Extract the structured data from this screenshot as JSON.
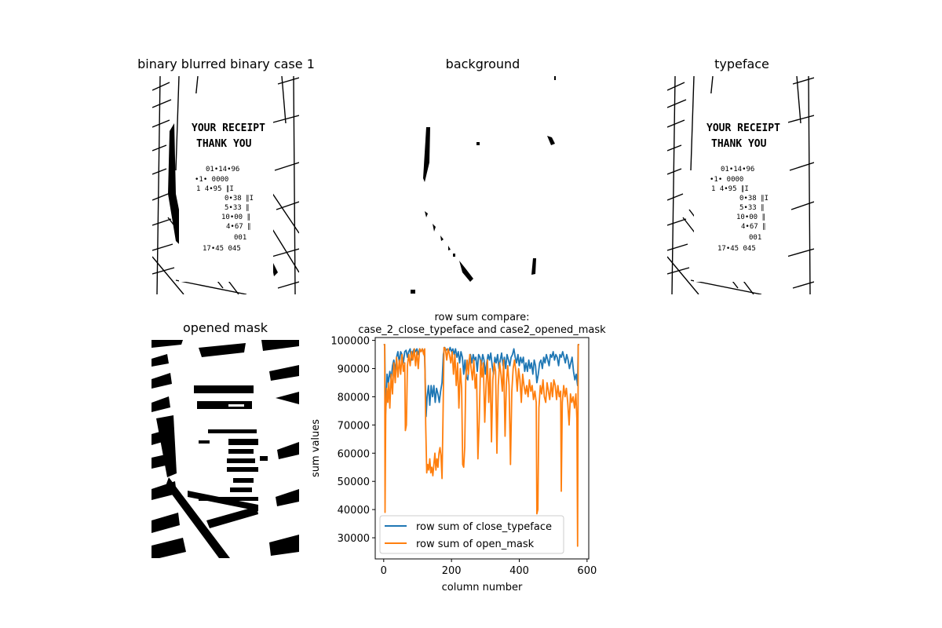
{
  "panels": {
    "p1_title": "binary blurred binary case 1",
    "p2_title": "background",
    "p3_title": "typeface",
    "p4_title": "opened mask"
  },
  "receipt": {
    "line1": "YOUR RECEIPT",
    "line2": "THANK YOU",
    "rows": [
      "01•14•96",
      "•1•     0000",
      "1          4•95  ∥I",
      "0•38  ∥I",
      "5•33  ∥",
      "10•00  ∥",
      "4•67  ∥",
      "001",
      "17•45  045"
    ]
  },
  "chart_data": {
    "type": "line",
    "title": "row sum compare:\ncase_2_close_typeface and case2_opened_mask",
    "title_line1": "row sum compare:",
    "title_line2": "case_2_close_typeface and case2_opened_mask",
    "xlabel": "column number",
    "ylabel": "sum values",
    "xlim": [
      -25,
      605
    ],
    "ylim": [
      22500,
      101000
    ],
    "xticks": [
      0,
      200,
      400,
      600
    ],
    "yticks": [
      30000,
      40000,
      50000,
      60000,
      70000,
      80000,
      90000,
      100000
    ],
    "legend_position": "lower-left",
    "series": [
      {
        "name": "row sum of close_typeface",
        "color": "#1f77b4",
        "points": [
          [
            0,
            98500
          ],
          [
            3,
            98500
          ],
          [
            5,
            73000
          ],
          [
            8,
            80000
          ],
          [
            10,
            88000
          ],
          [
            14,
            85000
          ],
          [
            18,
            89000
          ],
          [
            22,
            86000
          ],
          [
            26,
            91000
          ],
          [
            30,
            93000
          ],
          [
            34,
            89000
          ],
          [
            38,
            94000
          ],
          [
            42,
            96000
          ],
          [
            46,
            92000
          ],
          [
            50,
            96000
          ],
          [
            54,
            95000
          ],
          [
            58,
            92000
          ],
          [
            62,
            96000
          ],
          [
            66,
            96500
          ],
          [
            70,
            94000
          ],
          [
            74,
            96000
          ],
          [
            78,
            97000
          ],
          [
            82,
            93000
          ],
          [
            86,
            96000
          ],
          [
            90,
            97000
          ],
          [
            94,
            96000
          ],
          [
            98,
            97000
          ],
          [
            102,
            95000
          ],
          [
            106,
            97000
          ],
          [
            110,
            96000
          ],
          [
            114,
            97000
          ],
          [
            118,
            96000
          ],
          [
            121,
            94000
          ],
          [
            125,
            73000
          ],
          [
            128,
            80000
          ],
          [
            132,
            84000
          ],
          [
            136,
            77000
          ],
          [
            140,
            84000
          ],
          [
            144,
            80000
          ],
          [
            148,
            84000
          ],
          [
            152,
            78000
          ],
          [
            156,
            83000
          ],
          [
            160,
            81000
          ],
          [
            164,
            78000
          ],
          [
            168,
            82000
          ],
          [
            172,
            85000
          ],
          [
            176,
            95000
          ],
          [
            180,
            97500
          ],
          [
            184,
            96500
          ],
          [
            188,
            97000
          ],
          [
            192,
            96000
          ],
          [
            196,
            97500
          ],
          [
            200,
            96000
          ],
          [
            204,
            97000
          ],
          [
            208,
            95000
          ],
          [
            212,
            97000
          ],
          [
            216,
            94000
          ],
          [
            220,
            96000
          ],
          [
            224,
            92000
          ],
          [
            228,
            96000
          ],
          [
            232,
            94000
          ],
          [
            236,
            88000
          ],
          [
            240,
            93000
          ],
          [
            244,
            87000
          ],
          [
            248,
            86000
          ],
          [
            252,
            93000
          ],
          [
            256,
            95000
          ],
          [
            260,
            92000
          ],
          [
            264,
            95000
          ],
          [
            268,
            93000
          ],
          [
            272,
            94000
          ],
          [
            276,
            89000
          ],
          [
            280,
            95000
          ],
          [
            284,
            94000
          ],
          [
            288,
            91000
          ],
          [
            292,
            95000
          ],
          [
            296,
            93000
          ],
          [
            300,
            88000
          ],
          [
            304,
            92000
          ],
          [
            308,
            95000
          ],
          [
            312,
            93000
          ],
          [
            316,
            95500
          ],
          [
            320,
            91000
          ],
          [
            324,
            88000
          ],
          [
            328,
            94000
          ],
          [
            332,
            92000
          ],
          [
            336,
            95000
          ],
          [
            340,
            90000
          ],
          [
            344,
            93000
          ],
          [
            348,
            95500
          ],
          [
            352,
            91000
          ],
          [
            356,
            94000
          ],
          [
            360,
            90000
          ],
          [
            364,
            95000
          ],
          [
            368,
            93000
          ],
          [
            372,
            91000
          ],
          [
            376,
            94000
          ],
          [
            380,
            95000
          ],
          [
            384,
            97000
          ],
          [
            388,
            94000
          ],
          [
            392,
            92000
          ],
          [
            396,
            95000
          ],
          [
            400,
            91000
          ],
          [
            404,
            94000
          ],
          [
            408,
            92000
          ],
          [
            412,
            94000
          ],
          [
            416,
            89000
          ],
          [
            420,
            92000
          ],
          [
            424,
            89000
          ],
          [
            428,
            93000
          ],
          [
            432,
            90000
          ],
          [
            436,
            92000
          ],
          [
            440,
            88000
          ],
          [
            444,
            93000
          ],
          [
            448,
            91000
          ],
          [
            452,
            85000
          ],
          [
            456,
            88000
          ],
          [
            460,
            92000
          ],
          [
            464,
            93000
          ],
          [
            468,
            90000
          ],
          [
            472,
            94000
          ],
          [
            476,
            92000
          ],
          [
            480,
            95000
          ],
          [
            484,
            93000
          ],
          [
            488,
            91000
          ],
          [
            492,
            95000
          ],
          [
            496,
            94000
          ],
          [
            500,
            96000
          ],
          [
            504,
            93000
          ],
          [
            508,
            95000
          ],
          [
            512,
            94000
          ],
          [
            516,
            91000
          ],
          [
            520,
            95000
          ],
          [
            524,
            94000
          ],
          [
            528,
            96000
          ],
          [
            532,
            94000
          ],
          [
            536,
            92000
          ],
          [
            540,
            95000
          ],
          [
            544,
            93000
          ],
          [
            548,
            90000
          ],
          [
            552,
            92000
          ],
          [
            556,
            94000
          ],
          [
            560,
            89000
          ],
          [
            564,
            86000
          ],
          [
            568,
            88000
          ],
          [
            572,
            84000
          ],
          [
            574,
            98500
          ],
          [
            577,
            98500
          ]
        ]
      },
      {
        "name": "row sum of open_mask",
        "color": "#ff7f0e",
        "points": [
          [
            0,
            98500
          ],
          [
            3,
            98500
          ],
          [
            4,
            39000
          ],
          [
            6,
            75000
          ],
          [
            9,
            83000
          ],
          [
            12,
            78000
          ],
          [
            15,
            85000
          ],
          [
            18,
            76000
          ],
          [
            22,
            88000
          ],
          [
            26,
            81000
          ],
          [
            30,
            92000
          ],
          [
            34,
            85000
          ],
          [
            38,
            94000
          ],
          [
            42,
            87000
          ],
          [
            46,
            93000
          ],
          [
            50,
            88000
          ],
          [
            54,
            95000
          ],
          [
            58,
            89000
          ],
          [
            62,
            92000
          ],
          [
            64,
            68000
          ],
          [
            67,
            70000
          ],
          [
            70,
            91000
          ],
          [
            74,
            95000
          ],
          [
            78,
            91000
          ],
          [
            82,
            96000
          ],
          [
            86,
            93000
          ],
          [
            90,
            97000
          ],
          [
            94,
            91000
          ],
          [
            98,
            96000
          ],
          [
            102,
            90000
          ],
          [
            106,
            97000
          ],
          [
            110,
            96000
          ],
          [
            114,
            97000
          ],
          [
            118,
            95000
          ],
          [
            121,
            97000
          ],
          [
            124,
            70000
          ],
          [
            127,
            53000
          ],
          [
            130,
            56000
          ],
          [
            133,
            54000
          ],
          [
            136,
            58000
          ],
          [
            139,
            53000
          ],
          [
            142,
            55000
          ],
          [
            145,
            52000
          ],
          [
            148,
            56000
          ],
          [
            151,
            60000
          ],
          [
            154,
            54000
          ],
          [
            157,
            58000
          ],
          [
            160,
            55000
          ],
          [
            163,
            60000
          ],
          [
            166,
            62000
          ],
          [
            169,
            59000
          ],
          [
            172,
            51000
          ],
          [
            175,
            72000
          ],
          [
            178,
            97500
          ],
          [
            182,
            97000
          ],
          [
            186,
            93000
          ],
          [
            190,
            97000
          ],
          [
            194,
            95000
          ],
          [
            198,
            92000
          ],
          [
            202,
            96000
          ],
          [
            206,
            88000
          ],
          [
            210,
            95000
          ],
          [
            214,
            84000
          ],
          [
            218,
            92000
          ],
          [
            222,
            76000
          ],
          [
            226,
            90000
          ],
          [
            230,
            83000
          ],
          [
            233,
            56000
          ],
          [
            236,
            55000
          ],
          [
            239,
            62000
          ],
          [
            242,
            86000
          ],
          [
            246,
            93000
          ],
          [
            250,
            88000
          ],
          [
            254,
            95000
          ],
          [
            258,
            90000
          ],
          [
            262,
            86000
          ],
          [
            266,
            93000
          ],
          [
            270,
            83000
          ],
          [
            274,
            88000
          ],
          [
            278,
            58000
          ],
          [
            282,
            72000
          ],
          [
            286,
            93000
          ],
          [
            290,
            87000
          ],
          [
            294,
            92000
          ],
          [
            298,
            71000
          ],
          [
            302,
            84000
          ],
          [
            306,
            93000
          ],
          [
            310,
            78000
          ],
          [
            314,
            90000
          ],
          [
            318,
            64000
          ],
          [
            322,
            86000
          ],
          [
            326,
            92000
          ],
          [
            330,
            89000
          ],
          [
            334,
            60000
          ],
          [
            338,
            84000
          ],
          [
            342,
            92000
          ],
          [
            346,
            88000
          ],
          [
            350,
            82000
          ],
          [
            354,
            93000
          ],
          [
            358,
            66000
          ],
          [
            362,
            85000
          ],
          [
            366,
            91000
          ],
          [
            370,
            84000
          ],
          [
            374,
            56000
          ],
          [
            378,
            82000
          ],
          [
            382,
            90000
          ],
          [
            386,
            93000
          ],
          [
            390,
            89000
          ],
          [
            394,
            82000
          ],
          [
            398,
            90000
          ],
          [
            402,
            86000
          ],
          [
            406,
            78000
          ],
          [
            410,
            88000
          ],
          [
            414,
            84000
          ],
          [
            418,
            81000
          ],
          [
            422,
            84000
          ],
          [
            426,
            80000
          ],
          [
            430,
            86000
          ],
          [
            434,
            82000
          ],
          [
            438,
            84000
          ],
          [
            442,
            79000
          ],
          [
            446,
            82000
          ],
          [
            450,
            78000
          ],
          [
            452,
            38500
          ],
          [
            455,
            40000
          ],
          [
            458,
            76000
          ],
          [
            462,
            84000
          ],
          [
            466,
            81000
          ],
          [
            470,
            86000
          ],
          [
            474,
            80000
          ],
          [
            478,
            78000
          ],
          [
            482,
            85000
          ],
          [
            486,
            82000
          ],
          [
            490,
            79000
          ],
          [
            494,
            85000
          ],
          [
            498,
            80000
          ],
          [
            502,
            86000
          ],
          [
            506,
            84000
          ],
          [
            510,
            79000
          ],
          [
            514,
            84000
          ],
          [
            518,
            80000
          ],
          [
            522,
            82000
          ],
          [
            524,
            46500
          ],
          [
            527,
            78000
          ],
          [
            531,
            84000
          ],
          [
            535,
            80000
          ],
          [
            539,
            83000
          ],
          [
            543,
            78000
          ],
          [
            547,
            70000
          ],
          [
            551,
            81000
          ],
          [
            555,
            78000
          ],
          [
            559,
            80000
          ],
          [
            563,
            76000
          ],
          [
            567,
            81000
          ],
          [
            570,
            72000
          ],
          [
            572,
            27000
          ],
          [
            574,
            98500
          ],
          [
            577,
            98500
          ]
        ]
      }
    ]
  }
}
